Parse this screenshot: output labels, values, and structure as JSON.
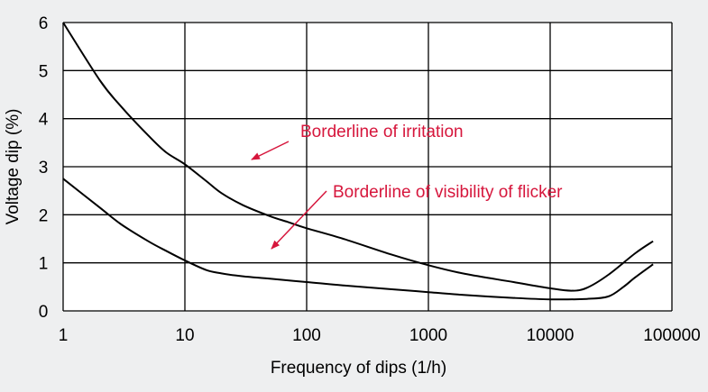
{
  "chart_data": {
    "type": "line",
    "xscale": "log",
    "xlabel": "Frequency of dips (1/h)",
    "ylabel": "Voltage dip (%)",
    "xlim": [
      1,
      100000
    ],
    "ylim": [
      0,
      6
    ],
    "xticks": [
      "1",
      "10",
      "100",
      "1000",
      "10000",
      "100000"
    ],
    "yticks": [
      "0",
      "1",
      "2",
      "3",
      "4",
      "5",
      "6"
    ],
    "grid": true,
    "colors": {
      "line": "#000000",
      "annotation": "#d6163c",
      "background": "#eeeff0",
      "plot_area": "#ffffff"
    },
    "series": [
      {
        "x": [
          1,
          2,
          3,
          5,
          7,
          10,
          15,
          20,
          30,
          50,
          70,
          100,
          200,
          500,
          1000,
          2000,
          5000,
          10000,
          15000,
          20000,
          30000,
          50000,
          70000
        ],
        "y": [
          6.0,
          4.8,
          4.25,
          3.65,
          3.3,
          3.05,
          2.7,
          2.45,
          2.2,
          1.97,
          1.85,
          1.72,
          1.5,
          1.17,
          0.95,
          0.77,
          0.6,
          0.47,
          0.42,
          0.48,
          0.75,
          1.2,
          1.45
        ]
      },
      {
        "x": [
          1,
          2,
          3,
          5,
          7,
          10,
          15,
          20,
          30,
          50,
          100,
          200,
          500,
          1000,
          2000,
          5000,
          10000,
          20000,
          30000,
          40000,
          50000,
          70000
        ],
        "y": [
          2.75,
          2.15,
          1.8,
          1.45,
          1.25,
          1.05,
          0.85,
          0.78,
          0.72,
          0.67,
          0.6,
          0.53,
          0.45,
          0.39,
          0.33,
          0.27,
          0.24,
          0.25,
          0.3,
          0.5,
          0.7,
          0.97
        ]
      }
    ],
    "annotations": [
      {
        "text": "Borderline of irritation",
        "x": 30,
        "y": 3.2,
        "for_series": 0
      },
      {
        "text": "Borderline of visibility of flicker",
        "x": 60,
        "y": 1.25,
        "for_series": 1
      }
    ]
  }
}
